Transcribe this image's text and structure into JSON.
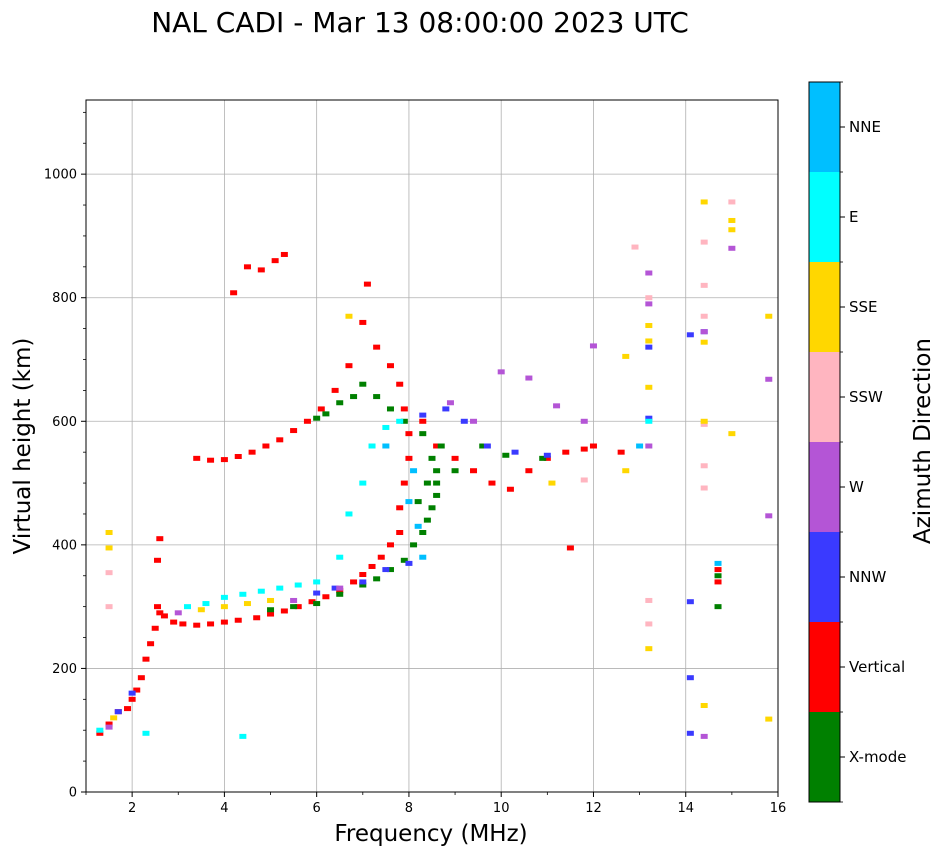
{
  "chart_data": {
    "type": "scatter",
    "title": "NAL CADI - Mar 13 08:00:00 2023 UTC",
    "xlabel": "Frequency (MHz)",
    "ylabel": "Virtual height (km)",
    "xlim": [
      1,
      16
    ],
    "ylim": [
      0,
      1120
    ],
    "x_ticks": [
      2,
      4,
      6,
      8,
      10,
      12,
      14,
      16
    ],
    "y_ticks": [
      0,
      200,
      400,
      600,
      800,
      1000
    ],
    "grid": true,
    "colorbar": {
      "label": "Azimuth Direction",
      "entries": [
        {
          "name": "X-mode",
          "color": "#008000"
        },
        {
          "name": "Vertical",
          "color": "#ff0000"
        },
        {
          "name": "NNW",
          "color": "#3a3aff"
        },
        {
          "name": "W",
          "color": "#b455d6"
        },
        {
          "name": "SSW",
          "color": "#ffb5c0"
        },
        {
          "name": "SSE",
          "color": "#ffd700"
        },
        {
          "name": "E",
          "color": "#00ffff"
        },
        {
          "name": "NNE",
          "color": "#00bfff"
        }
      ]
    },
    "series": [
      {
        "name": "Vertical",
        "points": [
          [
            1.3,
            95
          ],
          [
            1.5,
            110
          ],
          [
            1.7,
            130
          ],
          [
            1.9,
            135
          ],
          [
            2.0,
            150
          ],
          [
            2.1,
            165
          ],
          [
            2.2,
            185
          ],
          [
            2.3,
            215
          ],
          [
            2.4,
            240
          ],
          [
            2.5,
            265
          ],
          [
            2.55,
            300
          ],
          [
            2.6,
            290
          ],
          [
            2.7,
            285
          ],
          [
            2.9,
            275
          ],
          [
            3.1,
            272
          ],
          [
            3.4,
            270
          ],
          [
            3.7,
            272
          ],
          [
            4.0,
            275
          ],
          [
            4.3,
            278
          ],
          [
            4.7,
            282
          ],
          [
            5.0,
            288
          ],
          [
            5.3,
            293
          ],
          [
            5.6,
            300
          ],
          [
            5.9,
            308
          ],
          [
            6.2,
            316
          ],
          [
            6.5,
            326
          ],
          [
            6.8,
            340
          ],
          [
            7.0,
            352
          ],
          [
            7.2,
            365
          ],
          [
            7.4,
            380
          ],
          [
            7.6,
            400
          ],
          [
            7.8,
            420
          ],
          [
            2.6,
            410
          ],
          [
            2.55,
            375
          ],
          [
            7.8,
            460
          ],
          [
            7.9,
            500
          ],
          [
            8.0,
            540
          ],
          [
            8.0,
            580
          ],
          [
            7.9,
            620
          ],
          [
            7.8,
            660
          ],
          [
            7.6,
            690
          ],
          [
            7.3,
            720
          ],
          [
            7.0,
            760
          ],
          [
            6.7,
            690
          ],
          [
            6.4,
            650
          ],
          [
            6.1,
            620
          ],
          [
            5.8,
            600
          ],
          [
            5.5,
            585
          ],
          [
            5.2,
            570
          ],
          [
            4.9,
            560
          ],
          [
            4.6,
            550
          ],
          [
            4.3,
            543
          ],
          [
            4.0,
            538
          ],
          [
            3.7,
            537
          ],
          [
            3.4,
            540
          ],
          [
            8.3,
            600
          ],
          [
            8.6,
            560
          ],
          [
            9.0,
            540
          ],
          [
            9.4,
            520
          ],
          [
            9.8,
            500
          ],
          [
            10.2,
            490
          ],
          [
            10.6,
            520
          ],
          [
            11.0,
            540
          ],
          [
            11.4,
            550
          ],
          [
            11.8,
            555
          ],
          [
            12.0,
            560
          ],
          [
            12.6,
            550
          ],
          [
            4.5,
            850
          ],
          [
            4.8,
            845
          ],
          [
            5.1,
            860
          ],
          [
            5.3,
            870
          ],
          [
            4.2,
            808
          ],
          [
            7.1,
            822
          ],
          [
            11.5,
            395
          ],
          [
            14.7,
            340
          ],
          [
            14.7,
            360
          ]
        ]
      },
      {
        "name": "X-mode",
        "points": [
          [
            5.0,
            295
          ],
          [
            5.5,
            300
          ],
          [
            6.0,
            305
          ],
          [
            6.5,
            320
          ],
          [
            7.0,
            335
          ],
          [
            7.3,
            345
          ],
          [
            7.6,
            360
          ],
          [
            7.9,
            375
          ],
          [
            8.1,
            400
          ],
          [
            8.3,
            420
          ],
          [
            8.4,
            440
          ],
          [
            8.5,
            460
          ],
          [
            8.6,
            480
          ],
          [
            8.6,
            500
          ],
          [
            8.6,
            520
          ],
          [
            8.5,
            540
          ],
          [
            8.7,
            560
          ],
          [
            8.3,
            580
          ],
          [
            7.9,
            600
          ],
          [
            7.6,
            620
          ],
          [
            7.3,
            640
          ],
          [
            7.0,
            660
          ],
          [
            6.8,
            640
          ],
          [
            6.5,
            630
          ],
          [
            6.2,
            612
          ],
          [
            6.0,
            605
          ],
          [
            8.2,
            470
          ],
          [
            8.4,
            500
          ],
          [
            9.0,
            520
          ],
          [
            9.6,
            560
          ],
          [
            10.1,
            545
          ],
          [
            10.9,
            540
          ],
          [
            14.7,
            300
          ],
          [
            14.7,
            350
          ]
        ]
      },
      {
        "name": "NNW",
        "points": [
          [
            1.7,
            130
          ],
          [
            2.0,
            160
          ],
          [
            6.0,
            322
          ],
          [
            6.4,
            330
          ],
          [
            7.0,
            340
          ],
          [
            7.5,
            360
          ],
          [
            8.0,
            370
          ],
          [
            8.3,
            610
          ],
          [
            8.8,
            620
          ],
          [
            9.2,
            600
          ],
          [
            9.7,
            560
          ],
          [
            10.3,
            550
          ],
          [
            11.0,
            545
          ],
          [
            13.2,
            720
          ],
          [
            13.2,
            605
          ],
          [
            14.1,
            740
          ],
          [
            14.1,
            308
          ],
          [
            14.1,
            185
          ],
          [
            14.1,
            95
          ],
          [
            14.4,
            745
          ]
        ]
      },
      {
        "name": "W",
        "points": [
          [
            1.5,
            105
          ],
          [
            3.0,
            290
          ],
          [
            5.5,
            310
          ],
          [
            6.5,
            330
          ],
          [
            8.9,
            630
          ],
          [
            9.4,
            600
          ],
          [
            10.0,
            680
          ],
          [
            10.6,
            670
          ],
          [
            11.2,
            625
          ],
          [
            11.8,
            600
          ],
          [
            12.0,
            722
          ],
          [
            13.2,
            840
          ],
          [
            13.2,
            790
          ],
          [
            13.2,
            560
          ],
          [
            14.4,
            745
          ],
          [
            15.0,
            880
          ],
          [
            15.8,
            668
          ],
          [
            15.8,
            447
          ],
          [
            14.4,
            90
          ]
        ]
      },
      {
        "name": "SSW",
        "points": [
          [
            1.5,
            300
          ],
          [
            1.5,
            355
          ],
          [
            12.9,
            882
          ],
          [
            13.2,
            800
          ],
          [
            13.2,
            310
          ],
          [
            13.2,
            272
          ],
          [
            14.4,
            890
          ],
          [
            14.4,
            820
          ],
          [
            14.4,
            770
          ],
          [
            14.4,
            595
          ],
          [
            14.4,
            528
          ],
          [
            14.4,
            492
          ],
          [
            15.0,
            955
          ],
          [
            11.8,
            505
          ]
        ]
      },
      {
        "name": "SSE",
        "points": [
          [
            1.5,
            420
          ],
          [
            1.5,
            395
          ],
          [
            1.6,
            120
          ],
          [
            3.5,
            295
          ],
          [
            4.0,
            300
          ],
          [
            4.5,
            305
          ],
          [
            5.0,
            310
          ],
          [
            6.7,
            770
          ],
          [
            11.1,
            500
          ],
          [
            12.7,
            520
          ],
          [
            12.7,
            705
          ],
          [
            13.2,
            755
          ],
          [
            13.2,
            730
          ],
          [
            13.2,
            655
          ],
          [
            13.2,
            232
          ],
          [
            14.4,
            955
          ],
          [
            14.4,
            728
          ],
          [
            14.4,
            600
          ],
          [
            14.4,
            140
          ],
          [
            15.0,
            925
          ],
          [
            15.0,
            910
          ],
          [
            15.0,
            580
          ],
          [
            15.8,
            770
          ],
          [
            15.8,
            118
          ]
        ]
      },
      {
        "name": "E",
        "points": [
          [
            1.3,
            100
          ],
          [
            2.3,
            95
          ],
          [
            3.2,
            300
          ],
          [
            3.6,
            305
          ],
          [
            4.0,
            315
          ],
          [
            4.4,
            320
          ],
          [
            4.8,
            325
          ],
          [
            5.2,
            330
          ],
          [
            5.6,
            335
          ],
          [
            6.0,
            340
          ],
          [
            6.5,
            380
          ],
          [
            6.7,
            450
          ],
          [
            7.0,
            500
          ],
          [
            7.2,
            560
          ],
          [
            7.5,
            590
          ],
          [
            7.8,
            600
          ],
          [
            4.4,
            90
          ],
          [
            13.2,
            600
          ]
        ]
      },
      {
        "name": "NNE",
        "points": [
          [
            7.5,
            560
          ],
          [
            8.0,
            470
          ],
          [
            8.1,
            520
          ],
          [
            8.2,
            430
          ],
          [
            8.3,
            380
          ],
          [
            13.0,
            560
          ],
          [
            14.7,
            370
          ]
        ]
      }
    ]
  }
}
